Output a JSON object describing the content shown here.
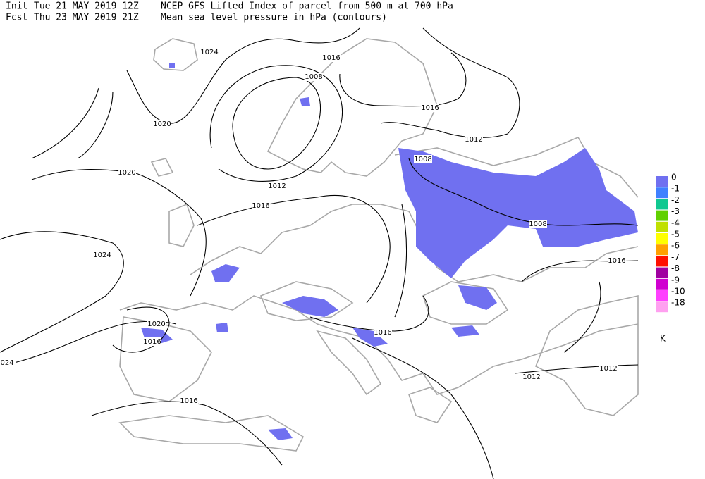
{
  "header": {
    "line1": {
      "label": "Init",
      "date": "Tue 21 MAY 2019 12Z",
      "title": "NCEP GFS Lifted Index of parcel from 500 m at 700 hPa"
    },
    "line2": {
      "label": "Fcst",
      "date": "Thu 23 MAY 2019 21Z",
      "title": "Mean sea level pressure in hPa (contours)"
    }
  },
  "contour_labels": [
    "1024",
    "1016",
    "1008",
    "1020",
    "1016",
    "1012",
    "1020",
    "1008",
    "1012",
    "1016",
    "1008",
    "1024",
    "1016",
    "1020",
    "1016",
    "1016",
    "024",
    "1012",
    "1012",
    "1016"
  ],
  "legend": {
    "items": [
      {
        "label": "0",
        "color": "#7070f0"
      },
      {
        "label": "-1",
        "color": "#4080ff"
      },
      {
        "label": "-2",
        "color": "#10c890"
      },
      {
        "label": "-3",
        "color": "#60d000"
      },
      {
        "label": "-4",
        "color": "#c0e000"
      },
      {
        "label": "-5",
        "color": "#ffff00"
      },
      {
        "label": "-6",
        "color": "#ffa000"
      },
      {
        "label": "-7",
        "color": "#ff1000"
      },
      {
        "label": "-8",
        "color": "#a000a0"
      },
      {
        "label": "-9",
        "color": "#d000d0"
      },
      {
        "label": "-10",
        "color": "#ff40ff"
      },
      {
        "label": "-18",
        "color": "#ffa0f0"
      }
    ],
    "unit": "K"
  }
}
